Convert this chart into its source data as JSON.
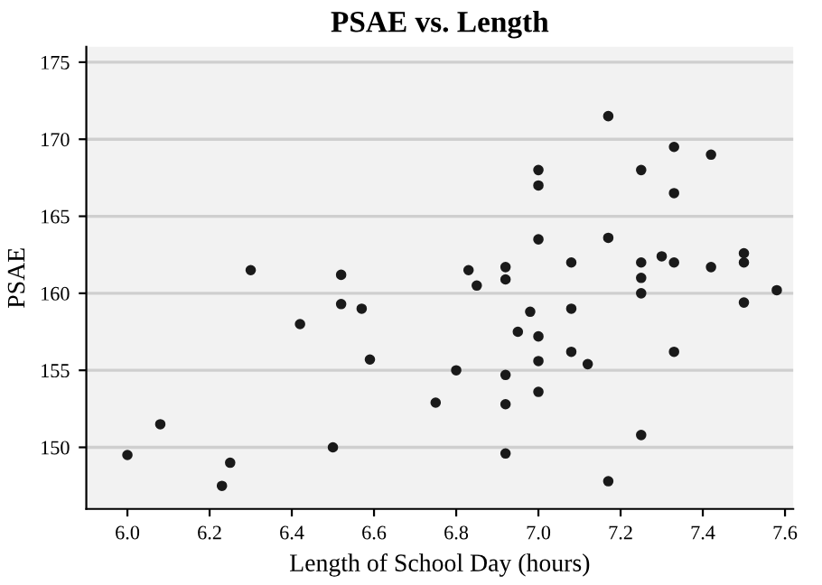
{
  "chart_data": {
    "type": "scatter",
    "title": "PSAE vs. Length",
    "xlabel": "Length of School Day (hours)",
    "ylabel": "PSAE",
    "x": [
      6.0,
      6.08,
      6.23,
      6.25,
      6.3,
      6.42,
      6.5,
      6.52,
      6.52,
      6.57,
      6.59,
      6.75,
      6.8,
      6.83,
      6.85,
      6.92,
      6.92,
      6.92,
      6.92,
      6.92,
      6.95,
      6.98,
      7.0,
      7.0,
      7.0,
      7.0,
      7.0,
      7.0,
      7.08,
      7.08,
      7.08,
      7.12,
      7.17,
      7.17,
      7.17,
      7.25,
      7.25,
      7.25,
      7.25,
      7.25,
      7.3,
      7.33,
      7.33,
      7.33,
      7.33,
      7.42,
      7.42,
      7.5,
      7.5,
      7.5,
      7.58
    ],
    "values": [
      149.5,
      151.5,
      147.5,
      149,
      161.5,
      158,
      150,
      161.2,
      159.3,
      159,
      155.7,
      152.9,
      155,
      161.5,
      160.5,
      161.7,
      160.9,
      154.7,
      152.8,
      149.6,
      157.5,
      158.8,
      168,
      167,
      163.5,
      157.2,
      155.6,
      153.6,
      162,
      159,
      156.2,
      155.4,
      171.5,
      163.6,
      147.8,
      168,
      162,
      161,
      160,
      150.8,
      162.4,
      169.5,
      166.5,
      162,
      156.2,
      169,
      161.7,
      162.6,
      162,
      159.4,
      160.2
    ],
    "color": "#1a1a1a",
    "marker": "circle",
    "xlim": [
      5.9,
      7.62
    ],
    "ylim": [
      146,
      176
    ],
    "xticks": [
      {
        "value": 6.0,
        "label": "6.0"
      },
      {
        "value": 6.2,
        "label": "6.2"
      },
      {
        "value": 6.4,
        "label": "6.4"
      },
      {
        "value": 6.6,
        "label": "6.6"
      },
      {
        "value": 6.8,
        "label": "6.8"
      },
      {
        "value": 7.0,
        "label": "7.0"
      },
      {
        "value": 7.2,
        "label": "7.2"
      },
      {
        "value": 7.4,
        "label": "7.4"
      },
      {
        "value": 7.6,
        "label": "7.6"
      }
    ],
    "yticks": [
      150,
      155,
      160,
      165,
      170,
      175
    ],
    "grid": "y"
  }
}
